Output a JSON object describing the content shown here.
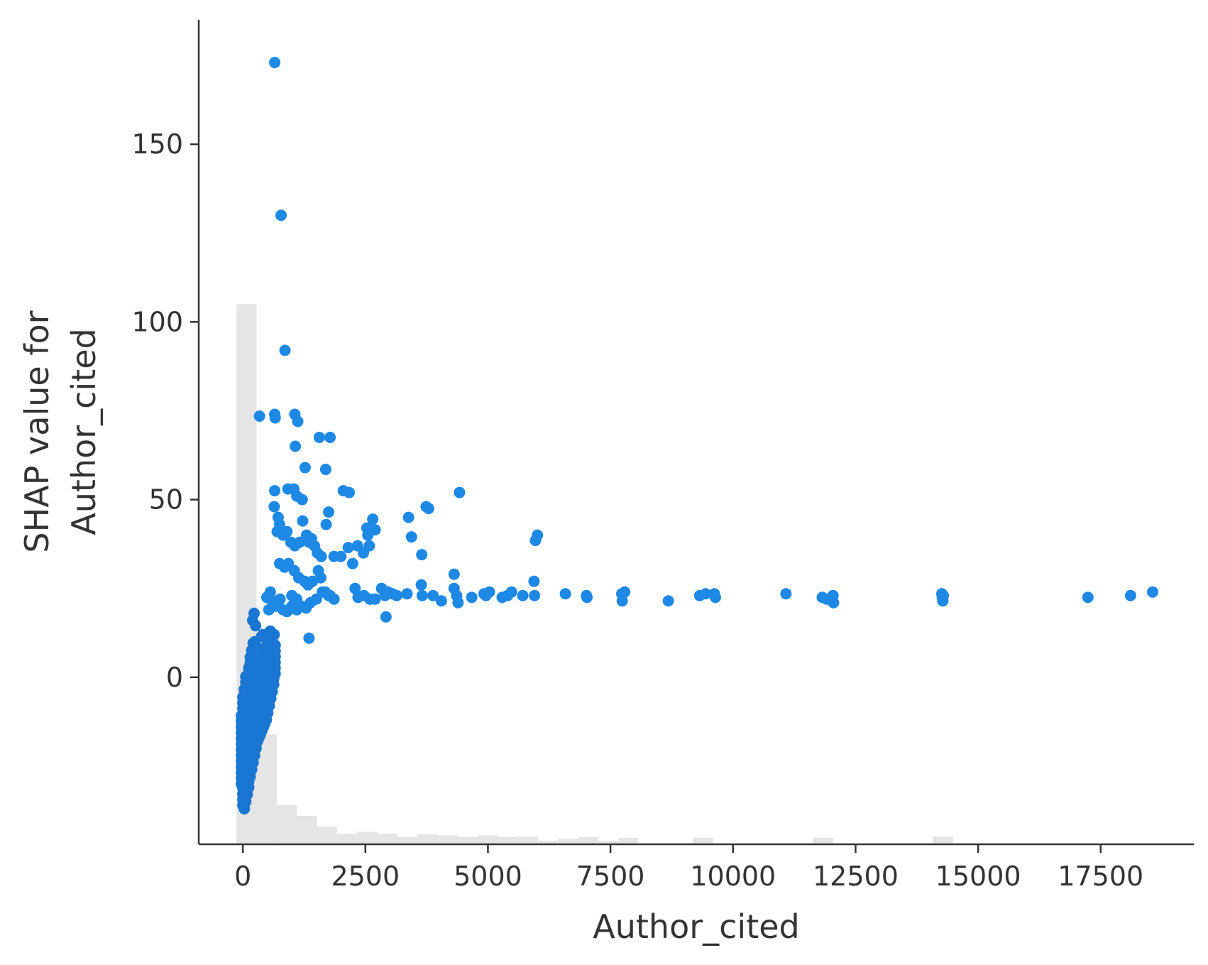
{
  "chart_data": {
    "type": "scatter",
    "xlabel": "Author_cited",
    "ylabel": [
      "SHAP value for",
      "Author_cited"
    ],
    "xlim": [
      -900,
      19400
    ],
    "ylim": [
      -47,
      185
    ],
    "xticks": [
      0,
      2500,
      5000,
      7500,
      10000,
      12500,
      15000,
      17500
    ],
    "yticks": [
      0,
      50,
      100,
      150
    ],
    "grid": false,
    "point_color": "#1e88e5",
    "dense_point_color": "#1976d2",
    "histogram_color": "#e5e5e5",
    "histogram": {
      "bin_width": 410,
      "bins": [
        {
          "x0": -130,
          "height_y": 105
        },
        {
          "x0": 280,
          "height_y": -16
        },
        {
          "x0": 690,
          "height_y": -36
        },
        {
          "x0": 1100,
          "height_y": -39
        },
        {
          "x0": 1510,
          "height_y": -42
        },
        {
          "x0": 1920,
          "height_y": -44
        },
        {
          "x0": 2330,
          "height_y": -43.5
        },
        {
          "x0": 2740,
          "height_y": -44
        },
        {
          "x0": 3150,
          "height_y": -45
        },
        {
          "x0": 3560,
          "height_y": -44.2
        },
        {
          "x0": 3970,
          "height_y": -44.5
        },
        {
          "x0": 4380,
          "height_y": -45
        },
        {
          "x0": 4790,
          "height_y": -44.5
        },
        {
          "x0": 5200,
          "height_y": -45
        },
        {
          "x0": 5610,
          "height_y": -44.8
        },
        {
          "x0": 6020,
          "height_y": -46
        },
        {
          "x0": 6430,
          "height_y": -45.5
        },
        {
          "x0": 6840,
          "height_y": -45
        },
        {
          "x0": 7250,
          "height_y": -46
        },
        {
          "x0": 7660,
          "height_y": -45.2
        },
        {
          "x0": 9180,
          "height_y": -45.2
        },
        {
          "x0": 11630,
          "height_y": -45.2
        },
        {
          "x0": 14080,
          "height_y": -44.8
        }
      ]
    },
    "points": [
      [
        650,
        173
      ],
      [
        780,
        130
      ],
      [
        860,
        92
      ],
      [
        340,
        73.5
      ],
      [
        650,
        74
      ],
      [
        660,
        73
      ],
      [
        1060,
        74
      ],
      [
        1120,
        72
      ],
      [
        1560,
        67.5
      ],
      [
        1780,
        67.5
      ],
      [
        1070,
        65
      ],
      [
        1270,
        59
      ],
      [
        1690,
        58.5
      ],
      [
        650,
        52.5
      ],
      [
        920,
        53
      ],
      [
        1040,
        53
      ],
      [
        1100,
        51
      ],
      [
        1210,
        50
      ],
      [
        2050,
        52.5
      ],
      [
        2170,
        52
      ],
      [
        4420,
        52
      ],
      [
        1750,
        46.5
      ],
      [
        3380,
        45
      ],
      [
        2650,
        44.5
      ],
      [
        3740,
        48
      ],
      [
        3790,
        47.5
      ],
      [
        720,
        45
      ],
      [
        750,
        43
      ],
      [
        1220,
        44
      ],
      [
        1700,
        43
      ],
      [
        2530,
        42
      ],
      [
        2550,
        40
      ],
      [
        2700,
        41.5
      ],
      [
        3440,
        39.5
      ],
      [
        5970,
        38.5
      ],
      [
        6010,
        40
      ],
      [
        640,
        48
      ],
      [
        700,
        41
      ],
      [
        820,
        40
      ],
      [
        900,
        41
      ],
      [
        980,
        38
      ],
      [
        1060,
        37
      ],
      [
        1160,
        38
      ],
      [
        1300,
        40
      ],
      [
        1350,
        38
      ],
      [
        1400,
        39
      ],
      [
        1460,
        37
      ],
      [
        1520,
        35
      ],
      [
        1600,
        34
      ],
      [
        1860,
        34
      ],
      [
        2000,
        34
      ],
      [
        2150,
        36.5
      ],
      [
        2240,
        32
      ],
      [
        2340,
        37
      ],
      [
        2460,
        35
      ],
      [
        2580,
        37
      ],
      [
        3650,
        34.5
      ],
      [
        750,
        32
      ],
      [
        850,
        31
      ],
      [
        930,
        32
      ],
      [
        1050,
        30
      ],
      [
        1140,
        28
      ],
      [
        1260,
        27
      ],
      [
        1330,
        26
      ],
      [
        1420,
        27
      ],
      [
        1540,
        30
      ],
      [
        1590,
        28
      ],
      [
        1680,
        24
      ],
      [
        1750,
        23
      ],
      [
        1860,
        22
      ],
      [
        2290,
        25
      ],
      [
        2350,
        22.5
      ],
      [
        2470,
        23
      ],
      [
        2590,
        22
      ],
      [
        2700,
        22
      ],
      [
        2830,
        25
      ],
      [
        2900,
        23
      ],
      [
        2960,
        24
      ],
      [
        3050,
        23.5
      ],
      [
        3140,
        23
      ],
      [
        3350,
        23.5
      ],
      [
        3640,
        26
      ],
      [
        3660,
        23
      ],
      [
        3880,
        23
      ],
      [
        4050,
        21.5
      ],
      [
        4310,
        25
      ],
      [
        4310,
        29
      ],
      [
        4360,
        23
      ],
      [
        4390,
        21
      ],
      [
        4670,
        22.5
      ],
      [
        4920,
        23.5
      ],
      [
        4960,
        23
      ],
      [
        5030,
        24
      ],
      [
        5290,
        22.5
      ],
      [
        5400,
        23
      ],
      [
        5480,
        24
      ],
      [
        5710,
        23
      ],
      [
        5940,
        27
      ],
      [
        5950,
        23
      ],
      [
        6580,
        23.5
      ],
      [
        7010,
        23
      ],
      [
        7020,
        22.5
      ],
      [
        7730,
        23.5
      ],
      [
        7790,
        24
      ],
      [
        7740,
        21.5
      ],
      [
        8680,
        21.5
      ],
      [
        9320,
        23
      ],
      [
        9440,
        23.5
      ],
      [
        9620,
        23.5
      ],
      [
        9640,
        22.5
      ],
      [
        11080,
        23.5
      ],
      [
        11820,
        22.5
      ],
      [
        11910,
        22
      ],
      [
        12040,
        23
      ],
      [
        12050,
        21
      ],
      [
        14260,
        23.5
      ],
      [
        14270,
        22.5
      ],
      [
        14280,
        21.5
      ],
      [
        14290,
        23
      ],
      [
        17240,
        22.5
      ],
      [
        18110,
        23
      ],
      [
        18560,
        24
      ],
      [
        2920,
        17
      ],
      [
        1350,
        11
      ],
      [
        490,
        22.5
      ],
      [
        560,
        24
      ],
      [
        600,
        21.5
      ],
      [
        670,
        20
      ],
      [
        760,
        22
      ],
      [
        820,
        19
      ],
      [
        900,
        18.5
      ],
      [
        1000,
        20
      ],
      [
        1100,
        19
      ],
      [
        1200,
        20
      ],
      [
        1290,
        19.5
      ],
      [
        1380,
        21
      ],
      [
        1500,
        22
      ],
      [
        1620,
        24
      ],
      [
        1780,
        23
      ],
      [
        530,
        19
      ],
      [
        1000,
        23
      ],
      [
        1100,
        22
      ]
    ],
    "dense_cluster": {
      "columns": [
        {
          "x": -30,
          "y_min": -30,
          "y_max": -10
        },
        {
          "x": 0,
          "y_min": -36,
          "y_max": -4
        },
        {
          "x": 30,
          "y_min": -37,
          "y_max": -2
        },
        {
          "x": 60,
          "y_min": -35,
          "y_max": 1
        },
        {
          "x": 90,
          "y_min": -33,
          "y_max": 2
        },
        {
          "x": 120,
          "y_min": -31,
          "y_max": 4
        },
        {
          "x": 150,
          "y_min": -28,
          "y_max": 6
        },
        {
          "x": 180,
          "y_min": -26,
          "y_max": 8
        },
        {
          "x": 210,
          "y_min": -24,
          "y_max": 10
        },
        {
          "x": 240,
          "y_min": -22,
          "y_max": 11
        },
        {
          "x": 270,
          "y_min": -20,
          "y_max": 10
        },
        {
          "x": 300,
          "y_min": -18,
          "y_max": 9
        },
        {
          "x": 330,
          "y_min": -17,
          "y_max": 8
        },
        {
          "x": 360,
          "y_min": -16,
          "y_max": 7
        },
        {
          "x": 390,
          "y_min": -15,
          "y_max": 6
        },
        {
          "x": 420,
          "y_min": -14,
          "y_max": 7
        },
        {
          "x": 450,
          "y_min": -13,
          "y_max": 8
        },
        {
          "x": 480,
          "y_min": -12,
          "y_max": 9
        },
        {
          "x": 510,
          "y_min": -10,
          "y_max": 10
        },
        {
          "x": 540,
          "y_min": -8,
          "y_max": 11
        },
        {
          "x": 570,
          "y_min": -6,
          "y_max": 12
        },
        {
          "x": 600,
          "y_min": -4,
          "y_max": 11
        },
        {
          "x": 630,
          "y_min": -2,
          "y_max": 10
        },
        {
          "x": 660,
          "y_min": 1,
          "y_max": 9
        }
      ],
      "extra_points": [
        [
          230,
          18
        ],
        [
          200,
          16
        ],
        [
          260,
          14.5
        ],
        [
          410,
          12
        ],
        [
          560,
          13
        ],
        [
          640,
          12
        ],
        [
          380,
          11.5
        ]
      ]
    }
  }
}
